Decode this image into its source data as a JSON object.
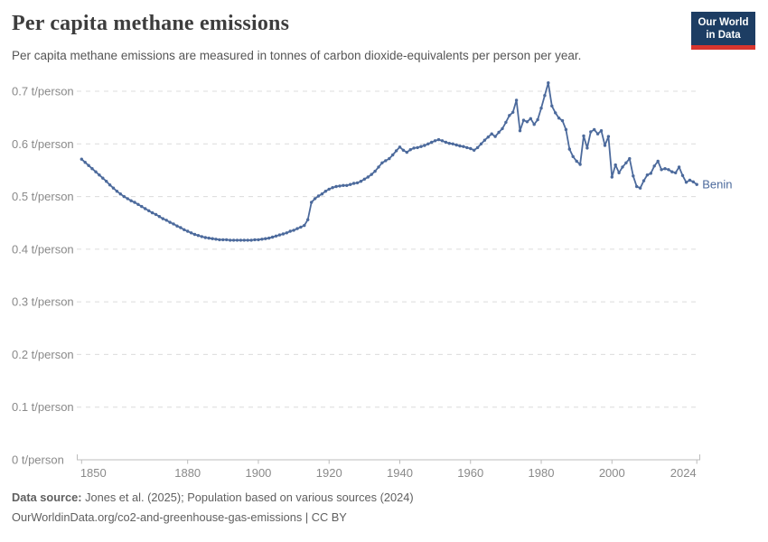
{
  "header": {
    "title": "Per capita methane emissions",
    "subtitle": "Per capita methane emissions are measured in tonnes of carbon dioxide-equivalents per person per year."
  },
  "logo": {
    "line1": "Our World",
    "line2": "in Data",
    "bg_color": "#1d3d63",
    "accent_color": "#d8352e"
  },
  "chart_data": {
    "type": "line",
    "title": "Per capita methane emissions",
    "unit": "t/person",
    "xlabel": "",
    "ylabel": "",
    "xlim": [
      1850,
      2024
    ],
    "ylim": [
      0,
      0.7
    ],
    "grid": "horizontal-dashed",
    "x_ticks": [
      {
        "v": 1850,
        "label": "1850"
      },
      {
        "v": 1880,
        "label": "1880"
      },
      {
        "v": 1900,
        "label": "1900"
      },
      {
        "v": 1920,
        "label": "1920"
      },
      {
        "v": 1940,
        "label": "1940"
      },
      {
        "v": 1960,
        "label": "1960"
      },
      {
        "v": 1980,
        "label": "1980"
      },
      {
        "v": 2000,
        "label": "2000"
      },
      {
        "v": 2024,
        "label": "2024"
      }
    ],
    "y_ticks": [
      {
        "v": 0.0,
        "label": "0 t/person"
      },
      {
        "v": 0.1,
        "label": "0.1 t/person"
      },
      {
        "v": 0.2,
        "label": "0.2 t/person"
      },
      {
        "v": 0.3,
        "label": "0.3 t/person"
      },
      {
        "v": 0.4,
        "label": "0.4 t/person"
      },
      {
        "v": 0.5,
        "label": "0.5 t/person"
      },
      {
        "v": 0.6,
        "label": "0.6 t/person"
      },
      {
        "v": 0.7,
        "label": "0.7 t/person"
      }
    ],
    "series": [
      {
        "name": "Benin",
        "color": "#4C6A9C",
        "year_start": 1850,
        "year_end": 2024,
        "values": [
          0.571,
          0.565,
          0.559,
          0.553,
          0.547,
          0.541,
          0.535,
          0.529,
          0.522,
          0.516,
          0.51,
          0.505,
          0.5,
          0.496,
          0.492,
          0.489,
          0.485,
          0.481,
          0.477,
          0.473,
          0.469,
          0.466,
          0.462,
          0.458,
          0.455,
          0.451,
          0.448,
          0.444,
          0.441,
          0.437,
          0.434,
          0.431,
          0.428,
          0.426,
          0.424,
          0.422,
          0.421,
          0.42,
          0.419,
          0.418,
          0.418,
          0.418,
          0.417,
          0.417,
          0.417,
          0.417,
          0.417,
          0.417,
          0.417,
          0.418,
          0.418,
          0.419,
          0.42,
          0.421,
          0.423,
          0.425,
          0.427,
          0.429,
          0.431,
          0.434,
          0.436,
          0.439,
          0.442,
          0.445,
          0.456,
          0.489,
          0.496,
          0.501,
          0.505,
          0.51,
          0.514,
          0.517,
          0.519,
          0.52,
          0.521,
          0.521,
          0.523,
          0.525,
          0.526,
          0.529,
          0.533,
          0.537,
          0.542,
          0.548,
          0.556,
          0.564,
          0.568,
          0.572,
          0.579,
          0.587,
          0.594,
          0.588,
          0.584,
          0.589,
          0.592,
          0.593,
          0.595,
          0.597,
          0.6,
          0.603,
          0.606,
          0.608,
          0.606,
          0.603,
          0.601,
          0.6,
          0.598,
          0.596,
          0.595,
          0.593,
          0.591,
          0.588,
          0.593,
          0.6,
          0.607,
          0.613,
          0.619,
          0.614,
          0.622,
          0.629,
          0.641,
          0.654,
          0.66,
          0.683,
          0.625,
          0.645,
          0.642,
          0.648,
          0.637,
          0.646,
          0.668,
          0.692,
          0.716,
          0.672,
          0.659,
          0.649,
          0.644,
          0.627,
          0.59,
          0.576,
          0.567,
          0.561,
          0.615,
          0.592,
          0.623,
          0.627,
          0.619,
          0.625,
          0.597,
          0.614,
          0.537,
          0.56,
          0.545,
          0.556,
          0.564,
          0.572,
          0.539,
          0.519,
          0.516,
          0.53,
          0.541,
          0.544,
          0.558,
          0.567,
          0.551,
          0.553,
          0.551,
          0.547,
          0.545,
          0.556,
          0.54,
          0.527,
          0.531,
          0.528,
          0.523
        ]
      }
    ],
    "end_label": "Benin",
    "legend_position": "end-of-line",
    "colors": {
      "gridline": "#dcdcdc",
      "axis": "#bcbcbc",
      "tick_label": "#8a8a8a"
    }
  },
  "footer": {
    "datasource_label": "Data source:",
    "datasource_text": " Jones et al. (2025); Population based on various sources (2024)",
    "license_line": "OurWorldinData.org/co2-and-greenhouse-gas-emissions | CC BY"
  }
}
